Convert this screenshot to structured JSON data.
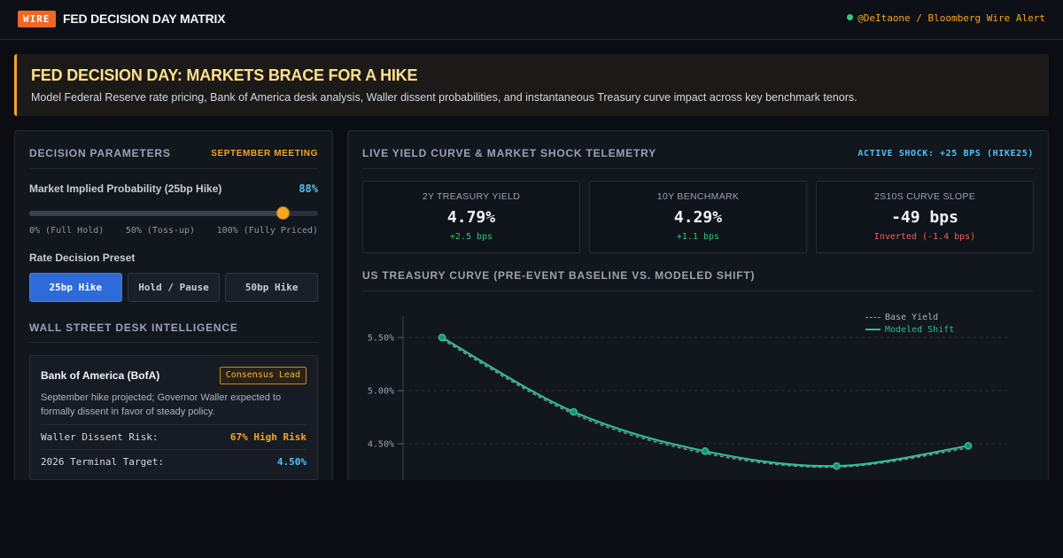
{
  "header": {
    "badge": "WIRE",
    "title": "FED DECISION DAY MATRIX",
    "source": "@DeItaone / Bloomberg Wire Alert"
  },
  "hero": {
    "title": "FED DECISION DAY: MARKETS BRACE FOR A HIKE",
    "subtitle": "Model Federal Reserve rate pricing, Bank of America desk analysis, Waller dissent probabilities, and instantaneous Treasury curve impact across key benchmark tenors."
  },
  "decision": {
    "heading": "DECISION PARAMETERS",
    "meeting": "SEPTEMBER MEETING",
    "prob_label": "Market Implied Probability (25bp Hike)",
    "prob_value": "88%",
    "prob_fraction": 0.88,
    "ticks": [
      "0% (Full Hold)",
      "50% (Toss-up)",
      "100% (Fully Priced)"
    ],
    "preset_label": "Rate Decision Preset",
    "presets": [
      "25bp Hike",
      "Hold / Pause",
      "50bp Hike"
    ],
    "active_preset": 0
  },
  "desk": {
    "heading": "WALL STREET DESK INTELLIGENCE",
    "name": "Bank of America (BofA)",
    "badge": "Consensus Lead",
    "note": "September hike projected; Governor Waller expected to formally dissent in favor of steady policy.",
    "rows": [
      {
        "key": "Waller Dissent Risk:",
        "value": "67% High Risk"
      },
      {
        "key": "2026 Terminal Target:",
        "value": "4.50%"
      }
    ]
  },
  "telemetry": {
    "heading": "LIVE YIELD CURVE & MARKET SHOCK TELEMETRY",
    "shock": "ACTIVE SHOCK: +25 BPS (HIKE25)",
    "stats": [
      {
        "label": "2Y TREASURY YIELD",
        "value": "4.79%",
        "delta": "+2.5 bps",
        "tone": "pos"
      },
      {
        "label": "10Y BENCHMARK",
        "value": "4.29%",
        "delta": "+1.1 bps",
        "tone": "pos"
      },
      {
        "label": "2S10S CURVE SLOPE",
        "value": "-49 bps",
        "delta": "Inverted (-1.4 bps)",
        "tone": "neg"
      }
    ]
  },
  "chart_data": {
    "type": "line",
    "title": "US TREASURY CURVE (PRE-EVENT BASELINE VS. MODELED SHIFT)",
    "y_ticks": [
      "5.50%",
      "5.00%",
      "4.50%"
    ],
    "y_tick_values": [
      5.5,
      5.0,
      4.5
    ],
    "ylim": [
      4.2,
      5.62
    ],
    "x": [
      1,
      2,
      3,
      4,
      5
    ],
    "series": [
      {
        "name": "Base Yield",
        "values": [
          5.48,
          4.78,
          4.41,
          4.28,
          4.46
        ],
        "color": "#8a919c",
        "dashed": true
      },
      {
        "name": "Modeled Shift",
        "values": [
          5.5,
          4.8,
          4.43,
          4.29,
          4.48
        ],
        "color": "#2bbf97",
        "dashed": false
      }
    ]
  }
}
